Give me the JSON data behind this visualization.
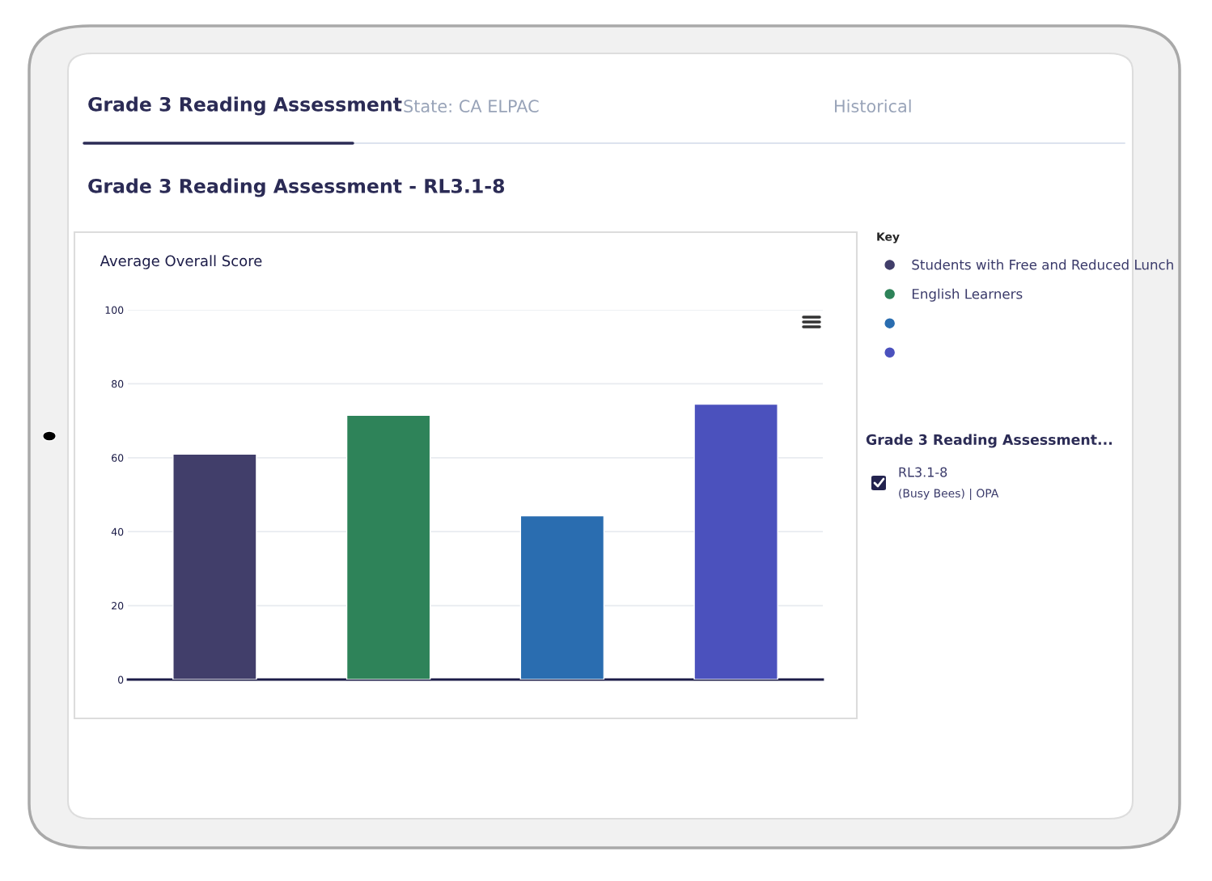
{
  "chart_data": {
    "type": "bar",
    "title": "Average Overall Score",
    "categories": [
      null,
      null,
      null,
      null
    ],
    "series": [
      {
        "name": "Students with Free and Reduced Lunch",
        "color": "#413e6a",
        "values": [
          61,
          null,
          null,
          null
        ]
      },
      {
        "name": "English Learners",
        "color": "#2e8359",
        "values": [
          null,
          71.5,
          null,
          null
        ]
      },
      {
        "color": "#2a6db0",
        "values": [
          null,
          null,
          44.3,
          null
        ]
      },
      {
        "color": "#4b51bd",
        "values": [
          null,
          null,
          null,
          74.5
        ]
      }
    ],
    "ylim": [
      0,
      100
    ],
    "yticks": [
      0,
      20,
      40,
      60,
      80,
      100
    ],
    "grid": "y",
    "legend": "right",
    "legend_title": "Key",
    "annotations": [
      "Grade 3 Reading Assessment",
      "State: CA ELPAC",
      "Historical",
      "Grade 3 Reading Assessment - RL3.1-8",
      "Grade 3 Reading Assessment...",
      "RL3.1-8",
      "(Busy Bees) | OPA"
    ]
  }
}
